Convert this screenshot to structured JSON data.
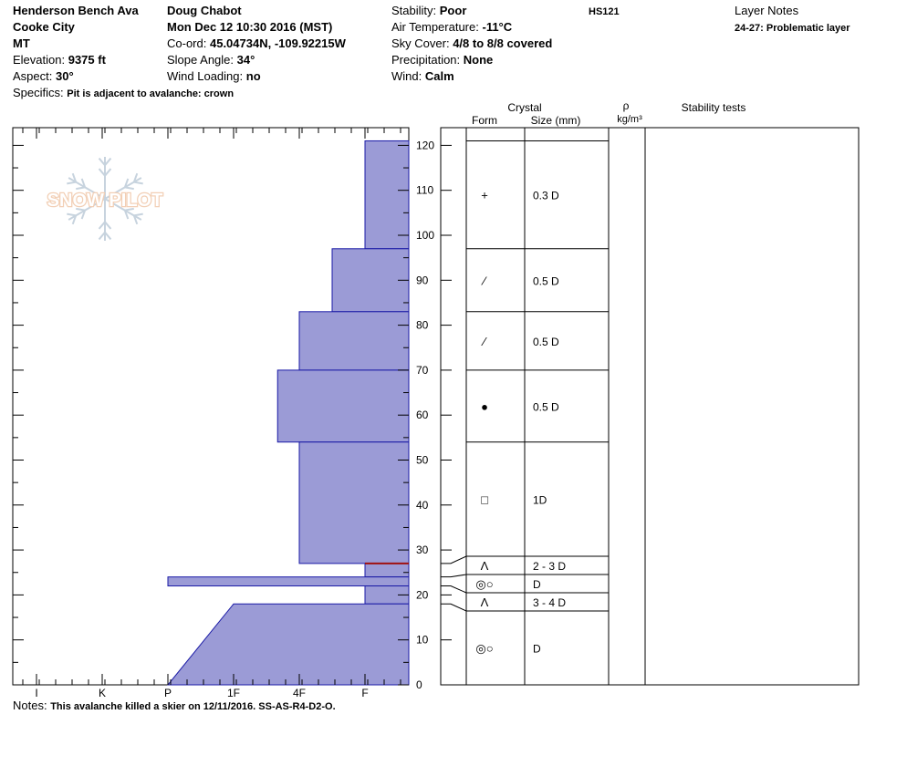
{
  "header": {
    "location": "Henderson Bench Ava",
    "region": "Cooke City",
    "state": "MT",
    "elevation_label": "Elevation:",
    "elevation_value": "9375 ft",
    "aspect_label": "Aspect:",
    "aspect_value": "30°",
    "specifics_label": "Specifics:",
    "specifics_value": "Pit is adjacent to avalanche: crown",
    "observer": "Doug Chabot",
    "datetime": "Mon Dec 12 10:30 2016 (MST)",
    "coord_label": "Co-ord:",
    "coord_value": "45.04734N, -109.92215W",
    "slope_label": "Slope Angle:",
    "slope_value": "34°",
    "wind_loading_label": "Wind Loading:",
    "wind_loading_value": "no",
    "stability_label": "Stability:",
    "stability_value": "Poor",
    "hs_value": "HS121",
    "air_temp_label": "Air Temperature:",
    "air_temp_value": "-11°C",
    "sky_label": "Sky Cover:",
    "sky_value": "4/8 to 8/8 covered",
    "precip_label": "Precipitation:",
    "precip_value": "None",
    "wind_label": "Wind:",
    "wind_value": "Calm",
    "layer_notes_label": "Layer Notes",
    "layer_notes_value": "24-27: Problematic layer",
    "notes_label": "Notes:",
    "notes_value": "This avalanche killed a skier on 12/11/2016. SS-AS-R4-D2-O."
  },
  "logo": {
    "text": "SNOW PILOT"
  },
  "columns": {
    "crystal": "Crystal",
    "form": "Form",
    "size": "Size (mm)",
    "rho": "ρ",
    "density_unit": "kg/m³",
    "stability_tests": "Stability tests"
  },
  "colors": {
    "hardness_fill": "#9b9bd6",
    "hardness_stroke": "#1a1aa6",
    "problem_line": "#a01010"
  },
  "chart_data": {
    "type": "bar",
    "orientation": "horizontal-step",
    "ylabel": "",
    "ylim": [
      0,
      124
    ],
    "y_ticks": [
      0,
      10,
      20,
      30,
      40,
      50,
      60,
      70,
      80,
      90,
      100,
      110,
      120
    ],
    "hardness_scale": [
      "I",
      "K",
      "P",
      "1F",
      "4F",
      "F"
    ],
    "hardness_note": "hardness index: F=0, 4F=1, 1F=2, P=3, K=4, I=5 (bars extend leftward from F edge)",
    "hardness_profile": [
      {
        "bottom": 97,
        "top": 121,
        "hardness": 0
      },
      {
        "bottom": 83,
        "top": 97,
        "hardness": 0.5
      },
      {
        "bottom": 70,
        "top": 83,
        "hardness": 1
      },
      {
        "bottom": 54,
        "top": 70,
        "hardness": 1.33
      },
      {
        "bottom": 27,
        "top": 54,
        "hardness": 1
      },
      {
        "bottom": 24,
        "top": 27,
        "hardness": 0
      },
      {
        "bottom": 22,
        "top": 24,
        "hardness": 3
      },
      {
        "bottom": 18,
        "top": 22,
        "hardness": 0
      },
      {
        "bottom": 0,
        "top": 18,
        "hardness": 2,
        "bottom_hardness": 3
      }
    ],
    "problem_layer_height": 27,
    "layers": [
      {
        "bottom": 97,
        "top": 121,
        "form": "+",
        "size": "0.3 D"
      },
      {
        "bottom": 83,
        "top": 97,
        "form": "⁄",
        "size": "0.5 D"
      },
      {
        "bottom": 70,
        "top": 83,
        "form": "⁄",
        "size": "0.5 D"
      },
      {
        "bottom": 54,
        "top": 70,
        "form": "●",
        "size": "0.5 D"
      },
      {
        "bottom": 27,
        "top": 54,
        "form": "□",
        "size": "1D"
      },
      {
        "bottom": 24,
        "top": 27,
        "form": "Λ",
        "size": "2 - 3 D"
      },
      {
        "bottom": 22,
        "top": 24,
        "form": "◎○",
        "size": "D"
      },
      {
        "bottom": 18,
        "top": 22,
        "form": "Λ",
        "size": "3 - 4 D"
      },
      {
        "bottom": 0,
        "top": 18,
        "form": "◎○",
        "size": "D"
      }
    ]
  }
}
